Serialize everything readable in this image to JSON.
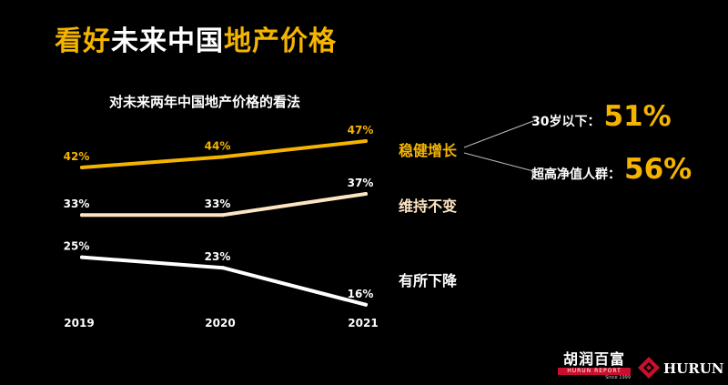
{
  "title": {
    "part1": "看好",
    "part2": "未来中国",
    "part3": "地产价格"
  },
  "colors": {
    "accent": "#f5b400",
    "white": "#ffffff",
    "beige": "#fde4c4",
    "logo_red": "#c8102e"
  },
  "chart_data": {
    "type": "line",
    "title": "对未来两年中国地产价格的看法",
    "categories": [
      "2019",
      "2020",
      "2021"
    ],
    "series": [
      {
        "name": "稳健增长",
        "values": [
          42,
          44,
          47
        ],
        "labels": [
          "42%",
          "44%",
          "47%"
        ],
        "color": "#f5b400"
      },
      {
        "name": "维持不变",
        "values": [
          33,
          33,
          37
        ],
        "labels": [
          "33%",
          "33%",
          "37%"
        ],
        "color": "#fde4c4"
      },
      {
        "name": "有所下降",
        "values": [
          25,
          23,
          16
        ],
        "labels": [
          "25%",
          "23%",
          "16%"
        ],
        "color": "#ffffff"
      }
    ],
    "grid": false,
    "legend": "right, inline labels"
  },
  "callouts": [
    {
      "text": "30岁以下：",
      "value": "51%"
    },
    {
      "text": "超高净值人群：",
      "value": "56%"
    }
  ],
  "logo": {
    "cn": "胡润百富",
    "en": "HURUN REPORT",
    "since": "Since 1999",
    "brand": "HURUN"
  }
}
